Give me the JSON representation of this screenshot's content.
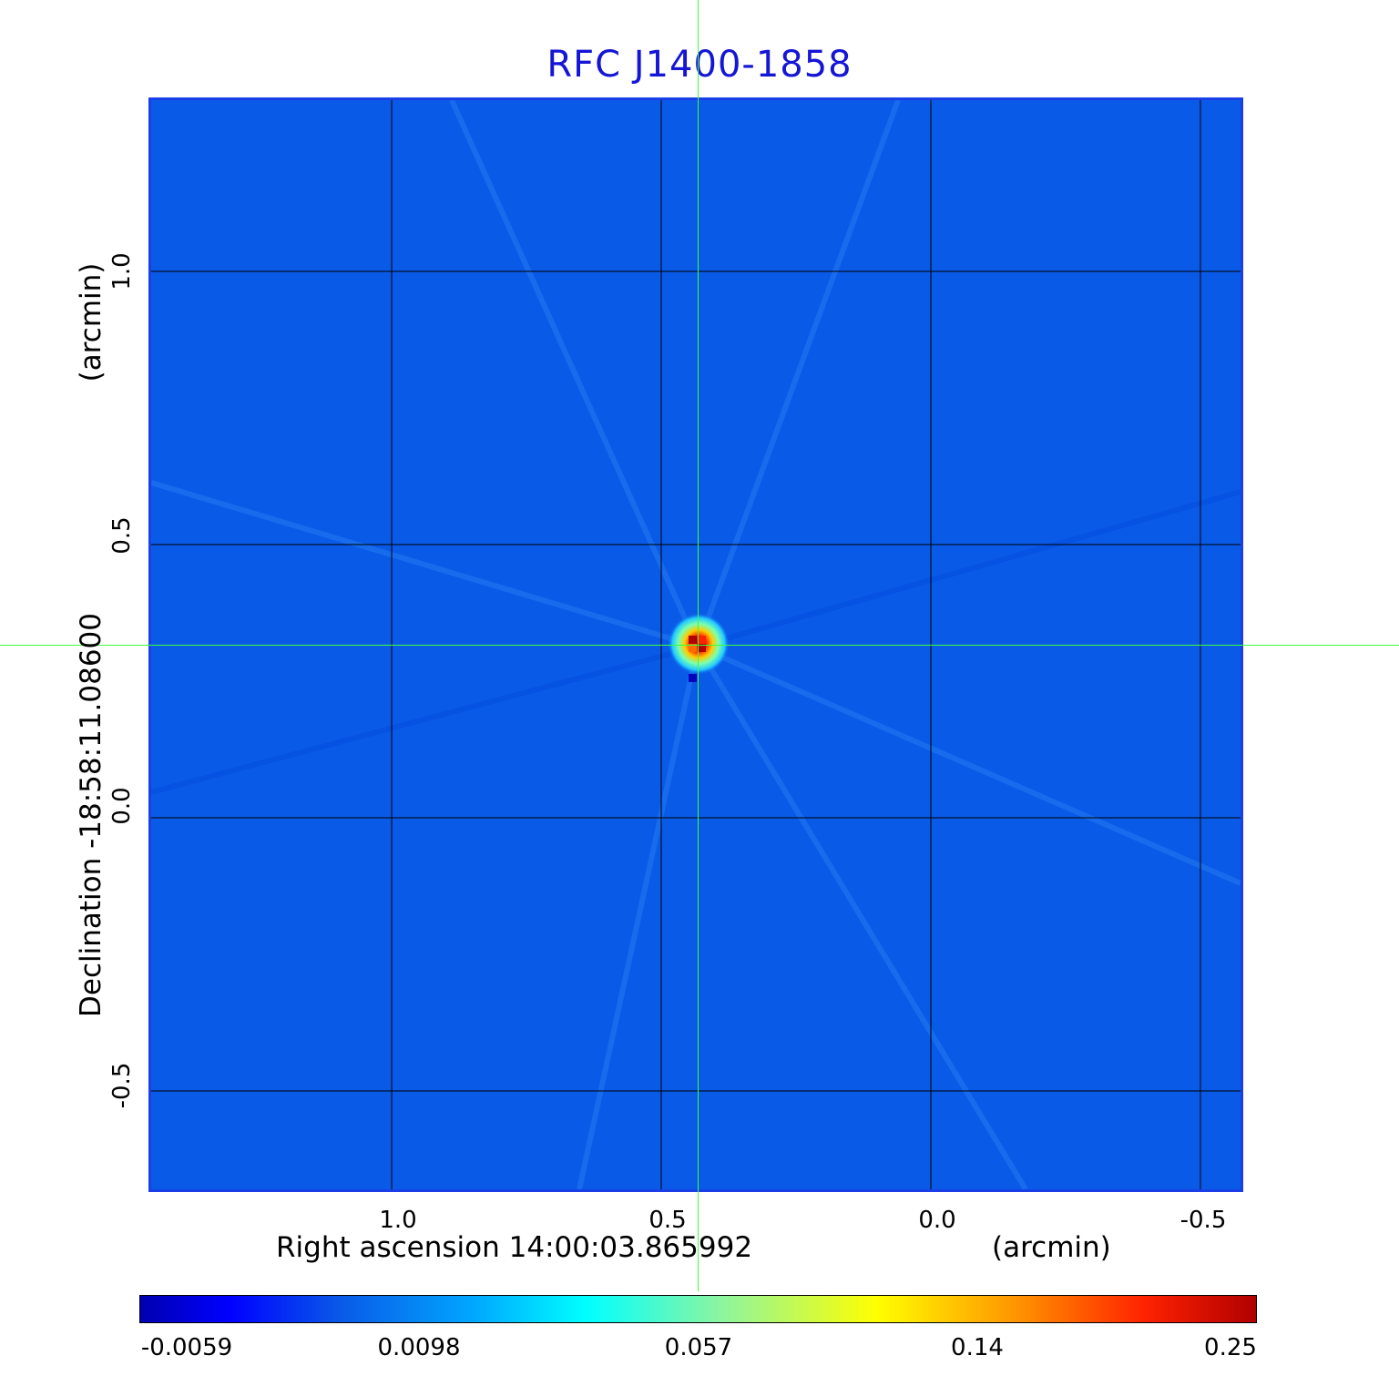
{
  "title": "RFC J1400-1858",
  "x_axis": {
    "title": "Right ascension  14:00:03.865992",
    "unit": "(arcmin)",
    "ticks": [
      "1.0",
      "0.5",
      "0.0",
      "-0.5"
    ]
  },
  "y_axis": {
    "title": "Declination  -18:58:11.08600",
    "unit": "(arcmin)",
    "ticks": [
      "1.0",
      "0.5",
      "0.0",
      "-0.5"
    ]
  },
  "colorbar": {
    "labels": [
      "-0.0059",
      "0.0098",
      "0.057",
      "0.14",
      "0.25"
    ]
  },
  "colors": {
    "background_field": "#0a5ae8",
    "grid": "#000000",
    "crosshair": "#3cff3c",
    "title": "#1515d6"
  }
}
